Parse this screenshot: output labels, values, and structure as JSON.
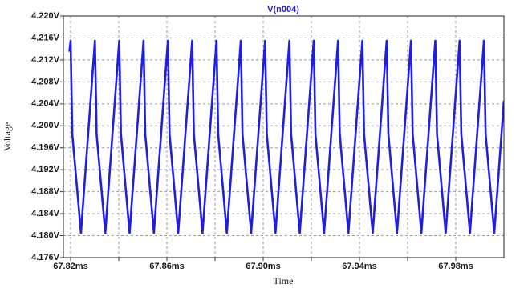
{
  "chart_data": {
    "type": "line",
    "title": "V(n004)",
    "xlabel": "Time",
    "ylabel": "Voltage",
    "grid": true,
    "xlim": [
      67.817,
      68.0
    ],
    "ylim": [
      4.176,
      4.22
    ],
    "xticks": [
      {
        "value": 67.82,
        "label": "67.82ms"
      },
      {
        "value": 67.84,
        "label": null
      },
      {
        "value": 67.86,
        "label": "67.86ms"
      },
      {
        "value": 67.88,
        "label": null
      },
      {
        "value": 67.9,
        "label": "67.90ms"
      },
      {
        "value": 67.92,
        "label": null
      },
      {
        "value": 67.94,
        "label": "67.94ms"
      },
      {
        "value": 67.96,
        "label": null
      },
      {
        "value": 67.98,
        "label": "67.98ms"
      }
    ],
    "yticks": [
      {
        "value": 4.176,
        "label": "4.176V"
      },
      {
        "value": 4.18,
        "label": "4.180V"
      },
      {
        "value": 4.184,
        "label": "4.184V"
      },
      {
        "value": 4.188,
        "label": "4.188V"
      },
      {
        "value": 4.192,
        "label": "4.192V"
      },
      {
        "value": 4.196,
        "label": "4.196V"
      },
      {
        "value": 4.2,
        "label": "4.200V"
      },
      {
        "value": 4.204,
        "label": "4.204V"
      },
      {
        "value": 4.208,
        "label": "4.208V"
      },
      {
        "value": 4.212,
        "label": "4.212V"
      },
      {
        "value": 4.216,
        "label": "4.216V"
      },
      {
        "value": 4.22,
        "label": "4.220V"
      }
    ],
    "series": [
      {
        "name": "V(n004)",
        "color": "#1f1fe0",
        "x": [
          67.8195,
          67.82,
          67.8207,
          67.8243,
          67.8301,
          67.8308,
          67.8344,
          67.8402,
          67.8409,
          67.8445,
          67.8503,
          67.851,
          67.8546,
          67.8604,
          67.8611,
          67.8647,
          67.8705,
          67.8712,
          67.8748,
          67.8806,
          67.8813,
          67.8849,
          67.8907,
          67.8914,
          67.895,
          67.9008,
          67.9015,
          67.9051,
          67.9109,
          67.9116,
          67.9152,
          67.921,
          67.9217,
          67.9253,
          67.9311,
          67.9318,
          67.9354,
          67.9412,
          67.9419,
          67.9455,
          67.9513,
          67.952,
          67.9556,
          67.9614,
          67.9621,
          67.9657,
          67.9715,
          67.9722,
          67.9758,
          67.9816,
          67.9823,
          67.9859,
          67.9917,
          67.9924,
          67.996,
          68.0
        ],
        "values": [
          4.2135,
          4.2155,
          4.1985,
          4.1805,
          4.2155,
          4.1985,
          4.1805,
          4.2155,
          4.1985,
          4.1805,
          4.2155,
          4.1985,
          4.1805,
          4.2155,
          4.1985,
          4.1805,
          4.2155,
          4.1985,
          4.1805,
          4.2155,
          4.1985,
          4.1805,
          4.2155,
          4.1985,
          4.1805,
          4.2155,
          4.1985,
          4.1805,
          4.2155,
          4.1985,
          4.1805,
          4.2155,
          4.1985,
          4.1805,
          4.2155,
          4.1985,
          4.1805,
          4.2155,
          4.1985,
          4.1805,
          4.2155,
          4.1985,
          4.1805,
          4.2155,
          4.1985,
          4.1805,
          4.2155,
          4.1985,
          4.1805,
          4.2155,
          4.1985,
          4.1805,
          4.2155,
          4.1985,
          4.1805,
          4.2046
        ]
      }
    ]
  }
}
